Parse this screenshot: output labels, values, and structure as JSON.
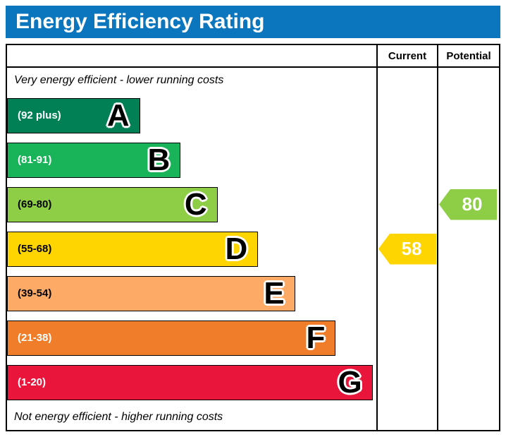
{
  "title": "Energy Efficiency Rating",
  "columns": {
    "current": "Current",
    "potential": "Potential"
  },
  "captions": {
    "top": "Very energy efficient - lower running costs",
    "bottom": "Not energy efficient - higher running costs"
  },
  "colors": {
    "header_bg": "#0b76be",
    "border": "#000000"
  },
  "chart_data": {
    "type": "bar",
    "title": "Energy Efficiency Rating",
    "bands": [
      {
        "letter": "A",
        "range": "(92 plus)",
        "color": "#008054",
        "width_pct": 36,
        "text_color": "#ffffff"
      },
      {
        "letter": "B",
        "range": "(81-91)",
        "color": "#19b459",
        "width_pct": 47,
        "text_color": "#ffffff"
      },
      {
        "letter": "C",
        "range": "(69-80)",
        "color": "#8dce46",
        "width_pct": 57,
        "text_color": "#000000"
      },
      {
        "letter": "D",
        "range": "(55-68)",
        "color": "#ffd500",
        "width_pct": 68,
        "text_color": "#000000"
      },
      {
        "letter": "E",
        "range": "(39-54)",
        "color": "#fcaa65",
        "width_pct": 78,
        "text_color": "#000000"
      },
      {
        "letter": "F",
        "range": "(21-38)",
        "color": "#f07d29",
        "width_pct": 89,
        "text_color": "#ffffff"
      },
      {
        "letter": "G",
        "range": "(1-20)",
        "color": "#e9153b",
        "width_pct": 99,
        "text_color": "#ffffff"
      }
    ],
    "current": {
      "value": "58",
      "band_index": 3,
      "band_letter": "D",
      "color": "#ffd500",
      "text_color": "#ffffff"
    },
    "potential": {
      "value": "80",
      "band_index": 2,
      "band_letter": "C",
      "color": "#8dce46",
      "text_color": "#ffffff"
    }
  }
}
